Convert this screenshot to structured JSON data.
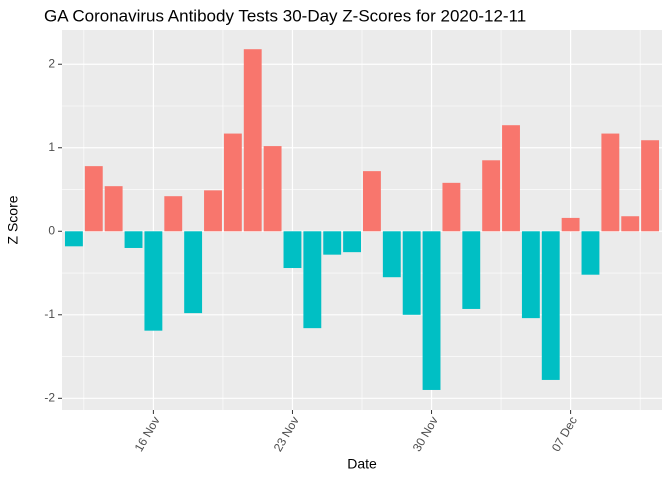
{
  "chart_data": {
    "type": "bar",
    "title": "GA Coronavirus Antibody Tests 30-Day Z-Scores for 2020-12-11",
    "x_label": "Date",
    "y_label": "Z Score",
    "x": [
      "12 Nov",
      "13 Nov",
      "14 Nov",
      "15 Nov",
      "16 Nov",
      "17 Nov",
      "18 Nov",
      "19 Nov",
      "20 Nov",
      "21 Nov",
      "22 Nov",
      "23 Nov",
      "24 Nov",
      "25 Nov",
      "26 Nov",
      "27 Nov",
      "28 Nov",
      "29 Nov",
      "30 Nov",
      "01 Dec",
      "02 Dec",
      "03 Dec",
      "04 Dec",
      "05 Dec",
      "06 Dec",
      "07 Dec",
      "08 Dec",
      "09 Dec",
      "10 Dec",
      "11 Dec"
    ],
    "values": [
      -0.18,
      0.78,
      0.54,
      -0.2,
      -1.19,
      0.42,
      -0.98,
      0.49,
      1.17,
      2.18,
      1.02,
      -0.44,
      -1.16,
      -0.28,
      -0.25,
      0.72,
      -0.55,
      -1.0,
      -1.9,
      0.58,
      -0.93,
      0.85,
      1.27,
      -1.04,
      -1.78,
      0.16,
      -0.52,
      1.17,
      0.18,
      1.09
    ],
    "positive_color": "#F8766D",
    "negative_color": "#00BFC4",
    "xticks": [
      "16 Nov",
      "23 Nov",
      "30 Nov",
      "07 Dec"
    ],
    "ylim": [
      -2.14,
      2.41
    ],
    "yticks": [
      -2,
      -1,
      0,
      1,
      2
    ],
    "grid": true
  }
}
